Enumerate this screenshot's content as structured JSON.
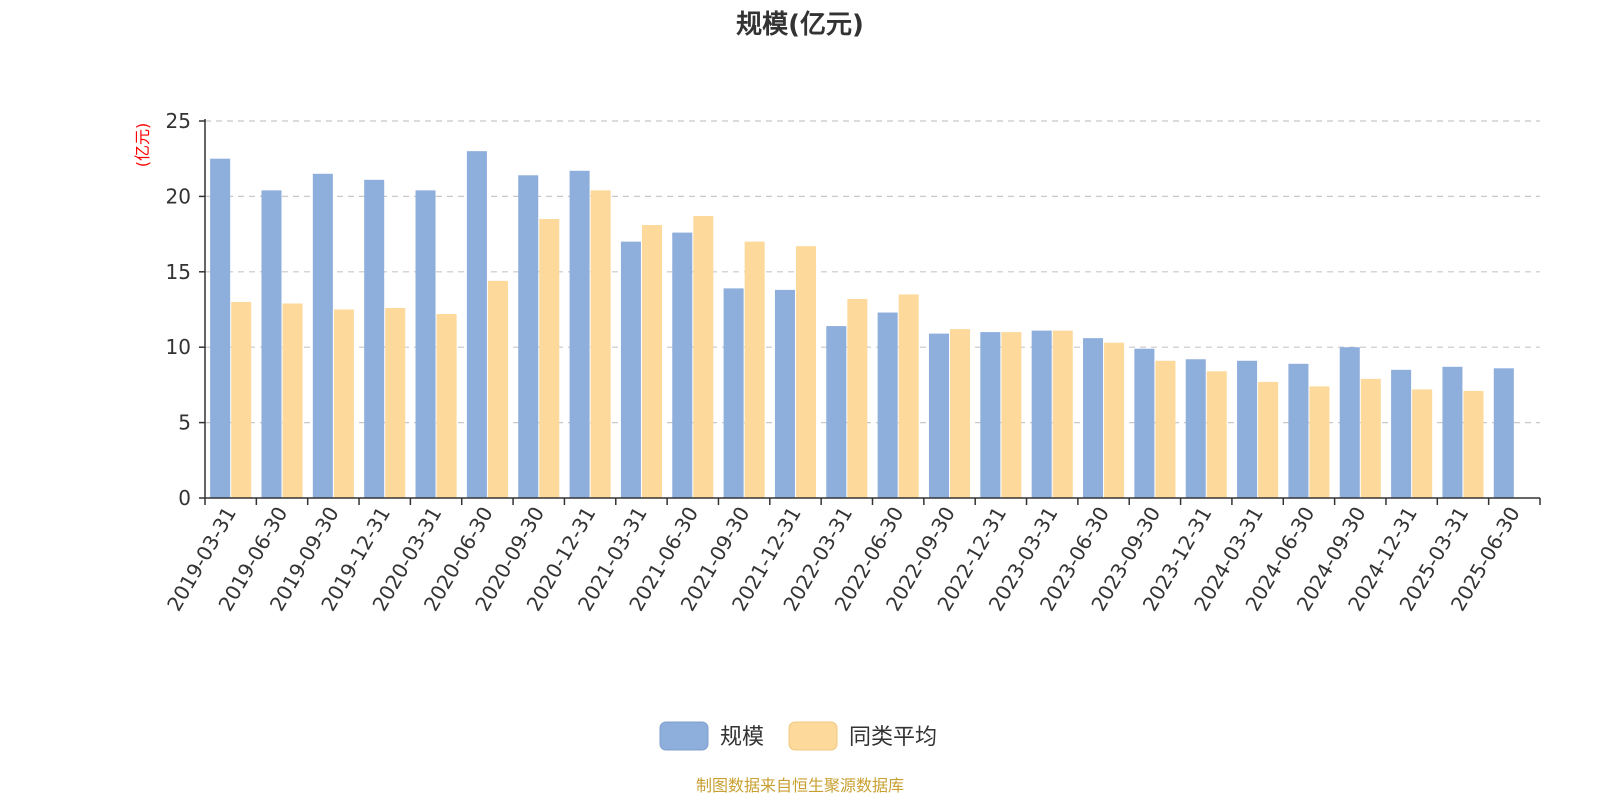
{
  "chart_data": {
    "type": "bar",
    "title": "规模(亿元)",
    "ylabel": "(亿元)",
    "xlabel": "",
    "ylim": [
      0,
      25
    ],
    "yticks": [
      0,
      5,
      10,
      15,
      20,
      25
    ],
    "grid": true,
    "legend_position": "bottom-center",
    "categories": [
      "2019-03-31",
      "2019-06-30",
      "2019-09-30",
      "2019-12-31",
      "2020-03-31",
      "2020-06-30",
      "2020-09-30",
      "2020-12-31",
      "2021-03-31",
      "2021-06-30",
      "2021-09-30",
      "2021-12-31",
      "2022-03-31",
      "2022-06-30",
      "2022-09-30",
      "2022-12-31",
      "2023-03-31",
      "2023-06-30",
      "2023-09-30",
      "2023-12-31",
      "2024-03-31",
      "2024-06-30",
      "2024-09-30",
      "2024-12-31",
      "2025-03-31",
      "2025-06-30"
    ],
    "series": [
      {
        "name": "规模",
        "color": "#8eaedc",
        "values": [
          22.5,
          20.4,
          21.5,
          21.1,
          20.4,
          23.0,
          21.4,
          21.7,
          17.0,
          17.6,
          13.9,
          13.8,
          11.4,
          12.3,
          10.9,
          11.0,
          11.1,
          10.6,
          9.9,
          9.2,
          9.1,
          8.9,
          10.0,
          8.5,
          8.7,
          8.6
        ]
      },
      {
        "name": "同类平均",
        "color": "#fdd99b",
        "values": [
          13.0,
          12.9,
          12.5,
          12.6,
          12.2,
          14.4,
          18.5,
          20.4,
          18.1,
          18.7,
          17.0,
          16.7,
          13.2,
          13.5,
          11.2,
          11.0,
          11.1,
          10.3,
          9.1,
          8.4,
          7.7,
          7.4,
          7.9,
          7.2,
          7.1,
          null
        ]
      }
    ]
  },
  "source_note": "制图数据来自恒生聚源数据库"
}
